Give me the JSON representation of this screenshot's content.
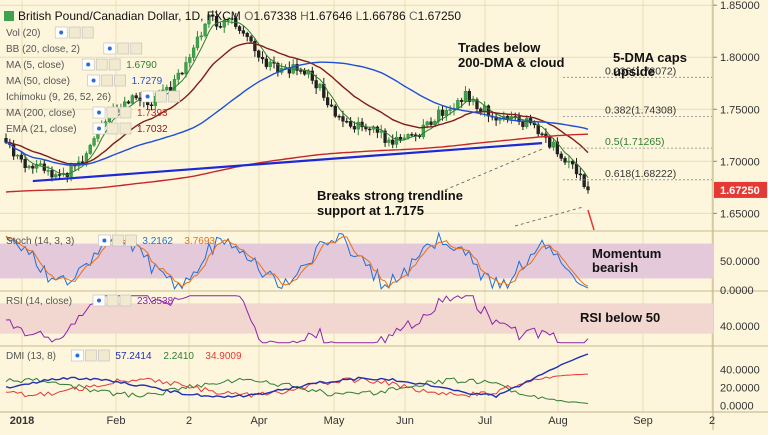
{
  "header": {
    "symbol": "British Pound/Canadian Dollar, 1D, FXCM",
    "ohlc": [
      {
        "k": "O",
        "v": "1.67338"
      },
      {
        "k": "H",
        "v": "1.67646"
      },
      {
        "k": "L",
        "v": "1.66786"
      },
      {
        "k": "C",
        "v": "1.67250"
      }
    ]
  },
  "indicator_legend": [
    {
      "label": "Vol (20)",
      "value": "",
      "color": "#555555"
    },
    {
      "label": "BB (20, close, 2)",
      "value": "",
      "color": "#555555"
    },
    {
      "label": "MA (5, close)",
      "value": "1.6790",
      "color": "#2e7d32"
    },
    {
      "label": "MA (50, close)",
      "value": "1.7279",
      "color": "#1f4fd8"
    },
    {
      "label": "Ichimoku (9, 26, 52, 26)",
      "value": "",
      "color": "#555555"
    },
    {
      "label": "MA (200, close)",
      "value": "1.7393",
      "color": "#c62828"
    },
    {
      "label": "EMA (21, close)",
      "value": "1.7032",
      "color": "#7f1d1d"
    }
  ],
  "annotations": {
    "trades_below": "Trades below\n200-DMA & cloud",
    "dma_caps": "5-DMA caps\nupside",
    "breaks": "Breaks strong trendline\nsupport at 1.7175",
    "momentum": "Momentum\nbearish",
    "rsi_below": "RSI below 50"
  },
  "fib_levels": [
    {
      "label": "0.236(1.78072)",
      "value": 1.78072
    },
    {
      "label": "0.382(1.74308)",
      "value": 1.74308
    },
    {
      "label": "0.5(1.71265)",
      "value": 1.71265
    },
    {
      "label": "0.618(1.68222)",
      "value": 1.68222
    }
  ],
  "last_price": {
    "label": "1.67250",
    "value": 1.6725,
    "color": "#e53935"
  },
  "stoch_panel": {
    "title": "Stoch (14, 3, 3)",
    "values": [
      "3.2162",
      "3.7693"
    ],
    "value_colors": [
      "#1f6fd8",
      "#e8701a"
    ],
    "ticks": [
      "50.0000",
      "0.0000"
    ]
  },
  "rsi_panel": {
    "title": "RSI (14, close)",
    "values": [
      "23.3538"
    ],
    "value_colors": [
      "#8e24aa"
    ],
    "ticks": [
      "40.0000"
    ]
  },
  "dmi_panel": {
    "title": "DMI (13, 8)",
    "values": [
      "57.2414",
      "2.2410",
      "34.9009"
    ],
    "value_colors": [
      "#1f2fb0",
      "#2e7d32",
      "#e53935"
    ],
    "ticks": [
      "40.0000",
      "20.0000",
      "0.0000"
    ]
  },
  "chart_data": {
    "type": "candlestick",
    "title": "British Pound/Canadian Dollar, 1D, FXCM",
    "x_axis_labels": [
      "2018",
      "Feb",
      "2",
      "Apr",
      "May",
      "Jun",
      "Jul",
      "Aug",
      "Sep",
      "2"
    ],
    "x_axis_index": [
      22,
      116,
      189,
      259,
      334,
      405,
      485,
      558,
      643,
      712
    ],
    "price_ticks": [
      "1.85000",
      "1.80000",
      "1.75000",
      "1.70000",
      "1.65000"
    ],
    "price_tick_values": [
      1.85,
      1.8,
      1.75,
      1.7,
      1.65
    ],
    "ylim": [
      1.634,
      1.855
    ],
    "n_days": 153,
    "close_anchors": [
      [
        0,
        1.715
      ],
      [
        4,
        1.7
      ],
      [
        8,
        1.695
      ],
      [
        13,
        1.683
      ],
      [
        20,
        1.7
      ],
      [
        27,
        1.745
      ],
      [
        33,
        1.76
      ],
      [
        38,
        1.758
      ],
      [
        44,
        1.775
      ],
      [
        50,
        1.815
      ],
      [
        53,
        1.84
      ],
      [
        56,
        1.83
      ],
      [
        59,
        1.835
      ],
      [
        63,
        1.815
      ],
      [
        68,
        1.795
      ],
      [
        72,
        1.788
      ],
      [
        77,
        1.79
      ],
      [
        82,
        1.77
      ],
      [
        86,
        1.745
      ],
      [
        92,
        1.733
      ],
      [
        97,
        1.728
      ],
      [
        101,
        1.715
      ],
      [
        104,
        1.725
      ],
      [
        108,
        1.728
      ],
      [
        112,
        1.743
      ],
      [
        117,
        1.755
      ],
      [
        120,
        1.765
      ],
      [
        123,
        1.752
      ],
      [
        127,
        1.745
      ],
      [
        132,
        1.742
      ],
      [
        136,
        1.737
      ],
      [
        140,
        1.725
      ],
      [
        144,
        1.712
      ],
      [
        148,
        1.695
      ],
      [
        152,
        1.6725
      ]
    ],
    "series": [
      {
        "name": "MA (5, close)",
        "color": "#2e7d32",
        "window": 5
      },
      {
        "name": "EMA (21, close)",
        "color": "#7f1d1d",
        "window": 21
      },
      {
        "name": "MA (50, close)",
        "color": "#1f4fd8",
        "window": 50
      },
      {
        "name": "MA (200, close)",
        "color": "#c62828",
        "window": 200
      }
    ],
    "trendline": [
      [
        7,
        1.681
      ],
      [
        140,
        1.7175
      ]
    ],
    "stochastic": {
      "ylim": [
        0,
        100
      ],
      "upper_band": 80,
      "lower_band": 20,
      "last_k": 3.2162,
      "last_d": 3.7693
    },
    "rsi": {
      "ylim": [
        15,
        85
      ],
      "upper_band": 70,
      "lower_band": 30,
      "last": 23.3538
    },
    "dmi": {
      "ylim": [
        -5,
        65
      ],
      "adx_last": 57.2414,
      "plus_di_last": 2.241,
      "minus_di_last": 34.9009
    }
  }
}
